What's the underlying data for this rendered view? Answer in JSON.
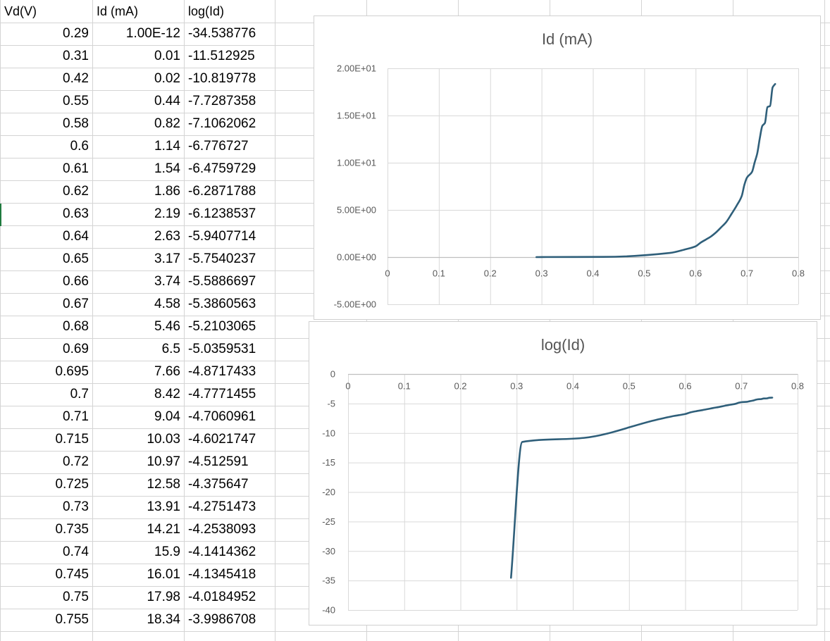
{
  "sheet": {
    "headers": [
      "Vd(V)",
      "Id (mA)",
      "log(Id)"
    ],
    "rows": [
      [
        "0.29",
        "1.00E-12",
        "-34.538776"
      ],
      [
        "0.31",
        "0.01",
        "-11.512925"
      ],
      [
        "0.42",
        "0.02",
        "-10.819778"
      ],
      [
        "0.55",
        "0.44",
        "-7.7287358"
      ],
      [
        "0.58",
        "0.82",
        "-7.1062062"
      ],
      [
        "0.6",
        "1.14",
        "-6.776727"
      ],
      [
        "0.61",
        "1.54",
        "-6.4759729"
      ],
      [
        "0.62",
        "1.86",
        "-6.2871788"
      ],
      [
        "0.63",
        "2.19",
        "-6.1238537"
      ],
      [
        "0.64",
        "2.63",
        "-5.9407714"
      ],
      [
        "0.65",
        "3.17",
        "-5.7540237"
      ],
      [
        "0.66",
        "3.74",
        "-5.5886697"
      ],
      [
        "0.67",
        "4.58",
        "-5.3860563"
      ],
      [
        "0.68",
        "5.46",
        "-5.2103065"
      ],
      [
        "0.69",
        "6.5",
        "-5.0359531"
      ],
      [
        "0.695",
        "7.66",
        "-4.8717433"
      ],
      [
        "0.7",
        "8.42",
        "-4.7771455"
      ],
      [
        "0.71",
        "9.04",
        "-4.7060961"
      ],
      [
        "0.715",
        "10.03",
        "-4.6021747"
      ],
      [
        "0.72",
        "10.97",
        "-4.512591"
      ],
      [
        "0.725",
        "12.58",
        "-4.375647"
      ],
      [
        "0.73",
        "13.91",
        "-4.2751473"
      ],
      [
        "0.735",
        "14.21",
        "-4.2538093"
      ],
      [
        "0.74",
        "15.9",
        "-4.1414362"
      ],
      [
        "0.745",
        "16.01",
        "-4.1345418"
      ],
      [
        "0.75",
        "17.98",
        "-4.0184952"
      ],
      [
        "0.755",
        "18.34",
        "-3.9986708"
      ]
    ]
  },
  "colors": {
    "series": "#2f5f7a",
    "grid": "#d9d9d9",
    "cell_border": "#d4d4d4",
    "axis_text": "#595959"
  },
  "chart_data": [
    {
      "type": "scatter",
      "title": "Id (mA)",
      "xlim": [
        0,
        0.8
      ],
      "ylim": [
        -5,
        20
      ],
      "x_ticks": [
        "0",
        "0.1",
        "0.2",
        "0.3",
        "0.4",
        "0.5",
        "0.6",
        "0.7",
        "0.8"
      ],
      "y_ticks": [
        "2.00E+01",
        "1.50E+01",
        "1.00E+01",
        "5.00E+00",
        "0.00E+00",
        "-5.00E+00"
      ],
      "grid": true,
      "series": [
        {
          "x": [
            0.29,
            0.31,
            0.42,
            0.55,
            0.58,
            0.6,
            0.61,
            0.62,
            0.63,
            0.64,
            0.65,
            0.66,
            0.67,
            0.68,
            0.69,
            0.695,
            0.7,
            0.71,
            0.715,
            0.72,
            0.725,
            0.73,
            0.735,
            0.74,
            0.745,
            0.75,
            0.755
          ],
          "y": [
            1e-12,
            0.01,
            0.02,
            0.44,
            0.82,
            1.14,
            1.54,
            1.86,
            2.19,
            2.63,
            3.17,
            3.74,
            4.58,
            5.46,
            6.5,
            7.66,
            8.42,
            9.04,
            10.03,
            10.97,
            12.58,
            13.91,
            14.21,
            15.9,
            16.01,
            17.98,
            18.34
          ]
        }
      ]
    },
    {
      "type": "scatter",
      "title": "log(Id)",
      "xlim": [
        0,
        0.8
      ],
      "ylim": [
        -40,
        0
      ],
      "x_ticks": [
        "0",
        "0.1",
        "0.2",
        "0.3",
        "0.4",
        "0.5",
        "0.6",
        "0.7",
        "0.8"
      ],
      "y_ticks": [
        "0",
        "-5",
        "-10",
        "-15",
        "-20",
        "-25",
        "-30",
        "-35",
        "-40"
      ],
      "grid": true,
      "series": [
        {
          "x": [
            0.29,
            0.31,
            0.42,
            0.55,
            0.58,
            0.6,
            0.61,
            0.62,
            0.63,
            0.64,
            0.65,
            0.66,
            0.67,
            0.68,
            0.69,
            0.695,
            0.7,
            0.71,
            0.715,
            0.72,
            0.725,
            0.73,
            0.735,
            0.74,
            0.745,
            0.75,
            0.755
          ],
          "y": [
            -34.538776,
            -11.512925,
            -10.819778,
            -7.7287358,
            -7.1062062,
            -6.776727,
            -6.4759729,
            -6.2871788,
            -6.1238537,
            -5.9407714,
            -5.7540237,
            -5.5886697,
            -5.3860563,
            -5.2103065,
            -5.0359531,
            -4.8717433,
            -4.7771455,
            -4.7060961,
            -4.6021747,
            -4.512591,
            -4.375647,
            -4.2751473,
            -4.2538093,
            -4.1414362,
            -4.1345418,
            -4.0184952,
            -3.9986708
          ]
        }
      ]
    }
  ]
}
